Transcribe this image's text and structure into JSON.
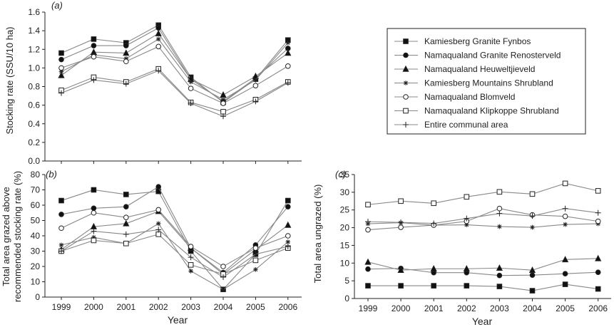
{
  "chart_data": [
    {
      "type": "line",
      "panel_label": "(a)",
      "xlabel": "",
      "ylabel": "Stocking rate (SSU/10 ha)",
      "x": [
        "1999",
        "2000",
        "2001",
        "2002",
        "2003",
        "2004",
        "2005",
        "2006"
      ],
      "ylim": [
        0,
        1.6
      ],
      "yticks": [
        "0.0",
        "0.2",
        "0.4",
        "0.6",
        "0.8",
        "1.0",
        "1.2",
        "1.4",
        "1.6"
      ],
      "grid": false,
      "legend_position": "right",
      "series": [
        {
          "name": "Kamiesberg Granite Fynbos",
          "marker": "square-filled",
          "values": [
            1.16,
            1.31,
            1.27,
            1.46,
            0.9,
            0.63,
            0.88,
            1.3
          ]
        },
        {
          "name": "Namaqualand Granite Renosterveld",
          "marker": "circle-filled",
          "values": [
            1.09,
            1.24,
            1.24,
            1.43,
            0.88,
            0.64,
            0.89,
            1.21
          ]
        },
        {
          "name": "Namaqualand Heuweltjieveld",
          "marker": "triangle-filled",
          "values": [
            0.92,
            1.17,
            1.16,
            1.37,
            0.88,
            0.71,
            0.91,
            1.16
          ]
        },
        {
          "name": "Kamiesberg Mountains Shrubland",
          "marker": "star",
          "values": [
            0.96,
            1.14,
            1.1,
            1.31,
            0.85,
            0.66,
            0.87,
            1.27
          ]
        },
        {
          "name": "Namaqualand Blomveld",
          "marker": "circle-open",
          "values": [
            1.0,
            1.12,
            1.07,
            1.23,
            0.78,
            0.62,
            0.81,
            1.02
          ]
        },
        {
          "name": "Namaqualand Klipkoppe Shrubland",
          "marker": "square-open",
          "values": [
            0.76,
            0.9,
            0.85,
            0.99,
            0.63,
            0.53,
            0.66,
            0.85
          ]
        },
        {
          "name": "Entire communal area",
          "marker": "plus",
          "values": [
            0.73,
            0.87,
            0.83,
            0.97,
            0.62,
            0.48,
            0.64,
            0.84
          ]
        }
      ]
    },
    {
      "type": "line",
      "panel_label": "(b)",
      "xlabel": "Year",
      "ylabel_lines": [
        "Total area grazed above",
        "recommended stocking rate (%)"
      ],
      "x": [
        "1999",
        "2000",
        "2001",
        "2002",
        "2003",
        "2004",
        "2005",
        "2006"
      ],
      "ylim": [
        0,
        80
      ],
      "yticks": [
        "0",
        "10",
        "20",
        "30",
        "40",
        "50",
        "60",
        "70",
        "80"
      ],
      "grid": false,
      "series": [
        {
          "name": "Kamiesberg Granite Fynbos",
          "marker": "square-filled",
          "values": [
            63,
            70,
            67,
            69,
            30,
            5,
            28,
            63
          ]
        },
        {
          "name": "Namaqualand Granite Renosterveld",
          "marker": "circle-filled",
          "values": [
            54,
            58,
            59,
            72,
            32,
            16,
            34,
            59
          ]
        },
        {
          "name": "Namaqualand Heuweltjieveld",
          "marker": "triangle-filled",
          "values": [
            31,
            46,
            48,
            56,
            32,
            15,
            31,
            47
          ]
        },
        {
          "name": "Kamiesberg Mountains Shrubland",
          "marker": "star",
          "values": [
            34,
            39,
            35,
            48,
            17,
            5,
            18,
            36
          ]
        },
        {
          "name": "Namaqualand Blomveld",
          "marker": "circle-open",
          "values": [
            45,
            55,
            52,
            57,
            33,
            20,
            32,
            40
          ]
        },
        {
          "name": "Namaqualand Klipkoppe Shrubland",
          "marker": "square-open",
          "values": [
            30,
            37,
            35,
            41,
            21,
            15,
            24,
            32
          ]
        },
        {
          "name": "Entire communal area",
          "marker": "plus",
          "values": [
            30,
            43,
            41,
            44,
            26,
            13,
            28,
            33
          ]
        }
      ]
    },
    {
      "type": "line",
      "panel_label": "(c)",
      "xlabel": "Year",
      "ylabel": "Total area ungrazed (%)",
      "x": [
        "1999",
        "2000",
        "2001",
        "2002",
        "2003",
        "2004",
        "2005",
        "2006"
      ],
      "ylim": [
        0,
        35
      ],
      "yticks": [
        "0",
        "5",
        "10",
        "15",
        "20",
        "25",
        "30",
        "35"
      ],
      "grid": false,
      "series": [
        {
          "name": "Kamiesberg Granite Fynbos",
          "marker": "square-filled",
          "values": [
            3.6,
            3.6,
            3.6,
            3.6,
            3.4,
            2.2,
            4.0,
            2.7
          ]
        },
        {
          "name": "Namaqualand Granite Renosterveld",
          "marker": "circle-filled",
          "values": [
            8.3,
            8.5,
            7.3,
            7.3,
            6.5,
            6.6,
            7.0,
            7.4
          ]
        },
        {
          "name": "Namaqualand Heuweltjieveld",
          "marker": "triangle-filled",
          "values": [
            10.3,
            8.0,
            8.4,
            8.4,
            8.6,
            8.0,
            11.0,
            11.3
          ]
        },
        {
          "name": "Kamiesberg Mountains Shrubland",
          "marker": "star",
          "values": [
            21.1,
            21.4,
            20.7,
            20.8,
            20.3,
            20.1,
            20.9,
            21.1
          ]
        },
        {
          "name": "Namaqualand Blomveld",
          "marker": "circle-open",
          "values": [
            19.4,
            20.1,
            20.7,
            21.8,
            25.4,
            23.6,
            23.2,
            21.8
          ]
        },
        {
          "name": "Namaqualand Klipkoppe Shrubland",
          "marker": "square-open",
          "values": [
            26.5,
            27.5,
            26.9,
            28.7,
            30.1,
            29.5,
            32.5,
            30.4
          ]
        },
        {
          "name": "Entire communal area",
          "marker": "plus",
          "values": [
            21.7,
            21.5,
            21.2,
            22.6,
            24.0,
            23.3,
            25.4,
            24.2
          ]
        }
      ]
    }
  ]
}
